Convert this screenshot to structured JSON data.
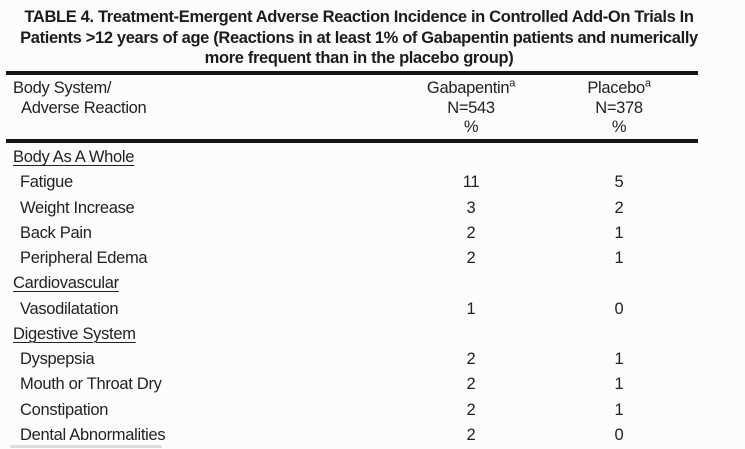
{
  "title_lines": [
    "TABLE 4. Treatment-Emergent Adverse Reaction Incidence in Controlled Add-On Trials In",
    "Patients >12 years of age (Reactions in at least 1% of Gabapentin patients and numerically",
    "more frequent than in the placebo group)"
  ],
  "header": {
    "col1_line1": "Body System/",
    "col1_line2": "Adverse Reaction",
    "gabapentin": {
      "name": "Gabapentin",
      "footnote": "a",
      "n": "N=543",
      "unit": "%"
    },
    "placebo": {
      "name": "Placebo",
      "footnote": "a",
      "n": "N=378",
      "unit": "%"
    }
  },
  "rows": [
    {
      "label": "Body As A Whole",
      "type": "category",
      "gabapentin": "",
      "placebo": ""
    },
    {
      "label": "Fatigue",
      "type": "item",
      "gabapentin": "11",
      "placebo": "5"
    },
    {
      "label": "Weight Increase",
      "type": "item",
      "gabapentin": "3",
      "placebo": "2"
    },
    {
      "label": "Back Pain",
      "type": "item",
      "gabapentin": "2",
      "placebo": "1"
    },
    {
      "label": "Peripheral Edema",
      "type": "item",
      "gabapentin": "2",
      "placebo": "1"
    },
    {
      "label": "Cardiovascular",
      "type": "category",
      "gabapentin": "",
      "placebo": ""
    },
    {
      "label": "Vasodilatation",
      "type": "item",
      "gabapentin": "1",
      "placebo": "0"
    },
    {
      "label": "Digestive System",
      "type": "category",
      "gabapentin": "",
      "placebo": ""
    },
    {
      "label": "Dyspepsia",
      "type": "item",
      "gabapentin": "2",
      "placebo": "1"
    },
    {
      "label": "Mouth or Throat Dry",
      "type": "item",
      "gabapentin": "2",
      "placebo": "1"
    },
    {
      "label": "Constipation",
      "type": "item",
      "gabapentin": "2",
      "placebo": "1"
    },
    {
      "label": "Dental Abnormalities",
      "type": "item",
      "gabapentin": "2",
      "placebo": "0"
    }
  ],
  "colors": {
    "text": "#222222",
    "rule": "#151515",
    "background": "#fcfcfc"
  }
}
